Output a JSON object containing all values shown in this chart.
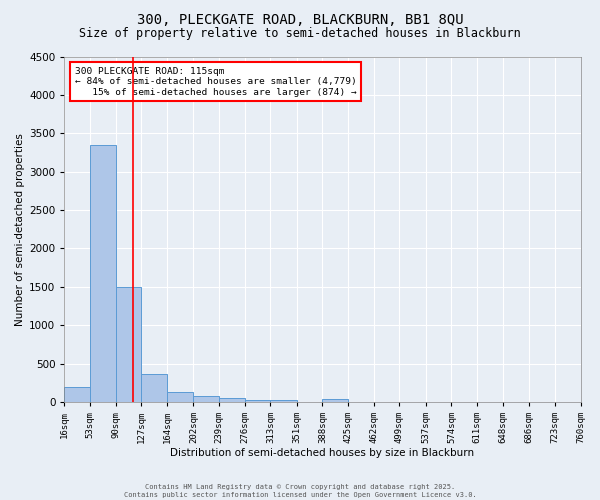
{
  "title1": "300, PLECKGATE ROAD, BLACKBURN, BB1 8QU",
  "title2": "Size of property relative to semi-detached houses in Blackburn",
  "xlabel": "Distribution of semi-detached houses by size in Blackburn",
  "ylabel": "Number of semi-detached properties",
  "bin_labels": [
    "16sqm",
    "53sqm",
    "90sqm",
    "127sqm",
    "164sqm",
    "202sqm",
    "239sqm",
    "276sqm",
    "313sqm",
    "351sqm",
    "388sqm",
    "425sqm",
    "462sqm",
    "499sqm",
    "537sqm",
    "574sqm",
    "611sqm",
    "648sqm",
    "686sqm",
    "723sqm",
    "760sqm"
  ],
  "bar_heights": [
    200,
    3350,
    1500,
    370,
    130,
    75,
    50,
    30,
    30,
    0,
    40,
    0,
    0,
    0,
    0,
    0,
    0,
    0,
    0,
    0
  ],
  "bar_color": "#aec6e8",
  "bar_edge_color": "#5b9bd5",
  "ylim": [
    0,
    4500
  ],
  "yticks": [
    0,
    500,
    1000,
    1500,
    2000,
    2500,
    3000,
    3500,
    4000,
    4500
  ],
  "property_line_x": 115,
  "bin_edges_numeric": [
    16,
    53,
    90,
    127,
    164,
    202,
    239,
    276,
    313,
    351,
    388,
    425,
    462,
    499,
    537,
    574,
    611,
    648,
    686,
    723,
    760
  ],
  "annotation_title": "300 PLECKGATE ROAD: 115sqm",
  "annotation_line1": "← 84% of semi-detached houses are smaller (4,779)",
  "annotation_line2": "15% of semi-detached houses are larger (874) →",
  "footer1": "Contains HM Land Registry data © Crown copyright and database right 2025.",
  "footer2": "Contains public sector information licensed under the Open Government Licence v3.0.",
  "background_color": "#e8eef5",
  "grid_color": "#ffffff",
  "title1_fontsize": 10,
  "title2_fontsize": 8.5
}
